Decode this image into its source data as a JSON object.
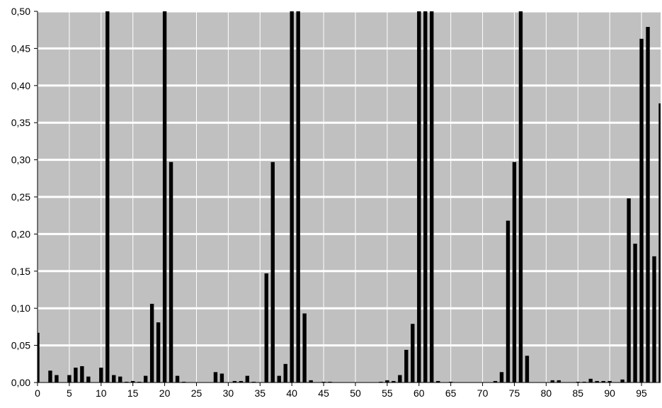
{
  "chart_data": {
    "type": "bar",
    "title": "",
    "xlabel": "",
    "ylabel": "",
    "x": [
      0,
      1,
      2,
      3,
      4,
      5,
      6,
      7,
      8,
      9,
      10,
      11,
      12,
      13,
      14,
      15,
      16,
      17,
      18,
      19,
      20,
      21,
      22,
      23,
      24,
      25,
      26,
      27,
      28,
      29,
      30,
      31,
      32,
      33,
      34,
      35,
      36,
      37,
      38,
      39,
      40,
      41,
      42,
      43,
      44,
      45,
      46,
      47,
      48,
      49,
      50,
      51,
      52,
      53,
      54,
      55,
      56,
      57,
      58,
      59,
      60,
      61,
      62,
      63,
      64,
      65,
      66,
      67,
      68,
      69,
      70,
      71,
      72,
      73,
      74,
      75,
      76,
      77,
      78,
      79,
      80,
      81,
      82,
      83,
      84,
      85,
      86,
      87,
      88,
      89,
      90,
      91,
      92,
      93,
      94,
      95,
      96,
      97,
      98
    ],
    "values": [
      0.067,
      0,
      0.016,
      0.01,
      0,
      0.01,
      0.02,
      0.022,
      0.008,
      0,
      0.02,
      0.5,
      0.01,
      0.008,
      0.001,
      0.002,
      0.001,
      0.009,
      0.106,
      0.081,
      0.5,
      0.297,
      0.009,
      0.001,
      0,
      0,
      0,
      0,
      0.014,
      0.012,
      0,
      0.002,
      0.002,
      0.009,
      0.001,
      0,
      0.147,
      0.297,
      0.009,
      0.025,
      0.5,
      0.5,
      0.093,
      0.003,
      0,
      0.001,
      0.001,
      0,
      0,
      0,
      0,
      0,
      0,
      0,
      0.001,
      0.003,
      0.002,
      0.01,
      0.044,
      0.079,
      0.5,
      0.5,
      0.5,
      0.002,
      0,
      0.001,
      0,
      0,
      0,
      0,
      0,
      0,
      0.002,
      0.014,
      0.218,
      0.297,
      0.5,
      0.036,
      0,
      0,
      0,
      0.003,
      0.003,
      0,
      0,
      0.001,
      0.001,
      0.005,
      0.002,
      0.002,
      0.002,
      0,
      0.004,
      0.248,
      0.187,
      0.463,
      0.479,
      0.17,
      0.376
    ],
    "ylim": [
      0,
      0.5
    ],
    "xlim": [
      0,
      98
    ],
    "yticks": [
      "0,00",
      "0,05",
      "0,10",
      "0,15",
      "0,20",
      "0,25",
      "0,30",
      "0,35",
      "0,40",
      "0,45",
      "0,50"
    ],
    "xticks": [
      "0",
      "5",
      "10",
      "15",
      "20",
      "25",
      "30",
      "35",
      "40",
      "45",
      "50",
      "55",
      "60",
      "65",
      "70",
      "75",
      "80",
      "85",
      "90",
      "95"
    ],
    "colors": {
      "bar": "#000000",
      "plot_background": "#c0c0c0",
      "gridline": "#ffffff"
    },
    "grid": true,
    "legend": "none"
  }
}
